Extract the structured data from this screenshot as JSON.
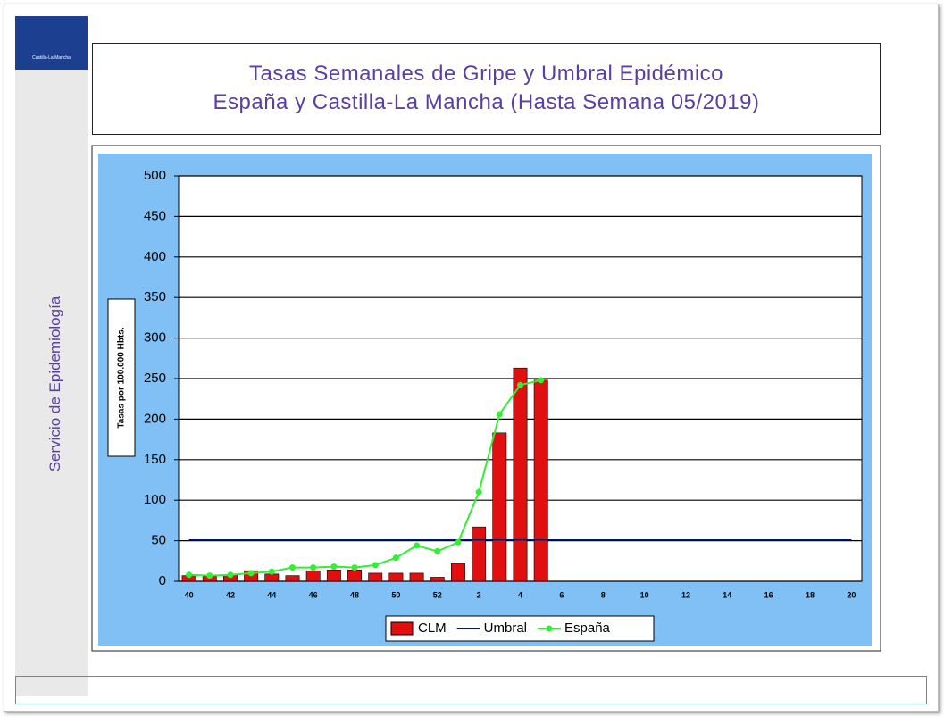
{
  "sidebar": {
    "logo_text": "Castilla-La Mancha",
    "department": "Servicio de Epidemiología"
  },
  "chart_data": {
    "type": "combo",
    "title": "Tasas Semanales de Gripe y Umbral Epidémico",
    "subtitle": "España y Castilla-La Mancha (Hasta Semana 05/2019)",
    "y_label": "Tasas por 100.000 Hbts.",
    "categories": [
      "40",
      null,
      "42",
      null,
      "44",
      null,
      "46",
      null,
      "48",
      null,
      "50",
      null,
      "52",
      null,
      "2",
      null,
      "4",
      null,
      "6",
      null,
      "8",
      null,
      "10",
      null,
      "12",
      null,
      "14",
      null,
      "16",
      null,
      "18",
      null,
      "20"
    ],
    "ylim": [
      0,
      500
    ],
    "yticks": [
      0,
      50,
      100,
      150,
      200,
      250,
      300,
      350,
      400,
      450,
      500
    ],
    "grid": true,
    "series": [
      {
        "name": "CLM",
        "type": "bar",
        "color": "#e01010",
        "values": [
          7,
          6,
          8,
          13,
          9,
          7,
          13,
          14,
          14,
          10,
          10,
          10,
          5,
          22,
          67,
          183,
          263,
          248,
          null,
          null,
          null,
          null,
          null,
          null,
          null,
          null,
          null,
          null,
          null,
          null,
          null,
          null,
          null
        ]
      },
      {
        "name": "Umbral",
        "type": "line",
        "color": "#001a66",
        "values": [
          51,
          51,
          51,
          51,
          51,
          51,
          51,
          51,
          51,
          51,
          51,
          51,
          51,
          51,
          51,
          51,
          51,
          51,
          51,
          51,
          51,
          51,
          51,
          51,
          51,
          51,
          51,
          51,
          51,
          51,
          51,
          51,
          51
        ]
      },
      {
        "name": "España",
        "type": "line",
        "marker": true,
        "color": "#33ee33",
        "values": [
          8,
          7,
          8,
          10,
          12,
          17,
          17,
          18,
          17,
          20,
          29,
          44,
          37,
          48,
          110,
          206,
          242,
          248,
          null,
          null,
          null,
          null,
          null,
          null,
          null,
          null,
          null,
          null,
          null,
          null,
          null,
          null,
          null
        ]
      }
    ]
  }
}
